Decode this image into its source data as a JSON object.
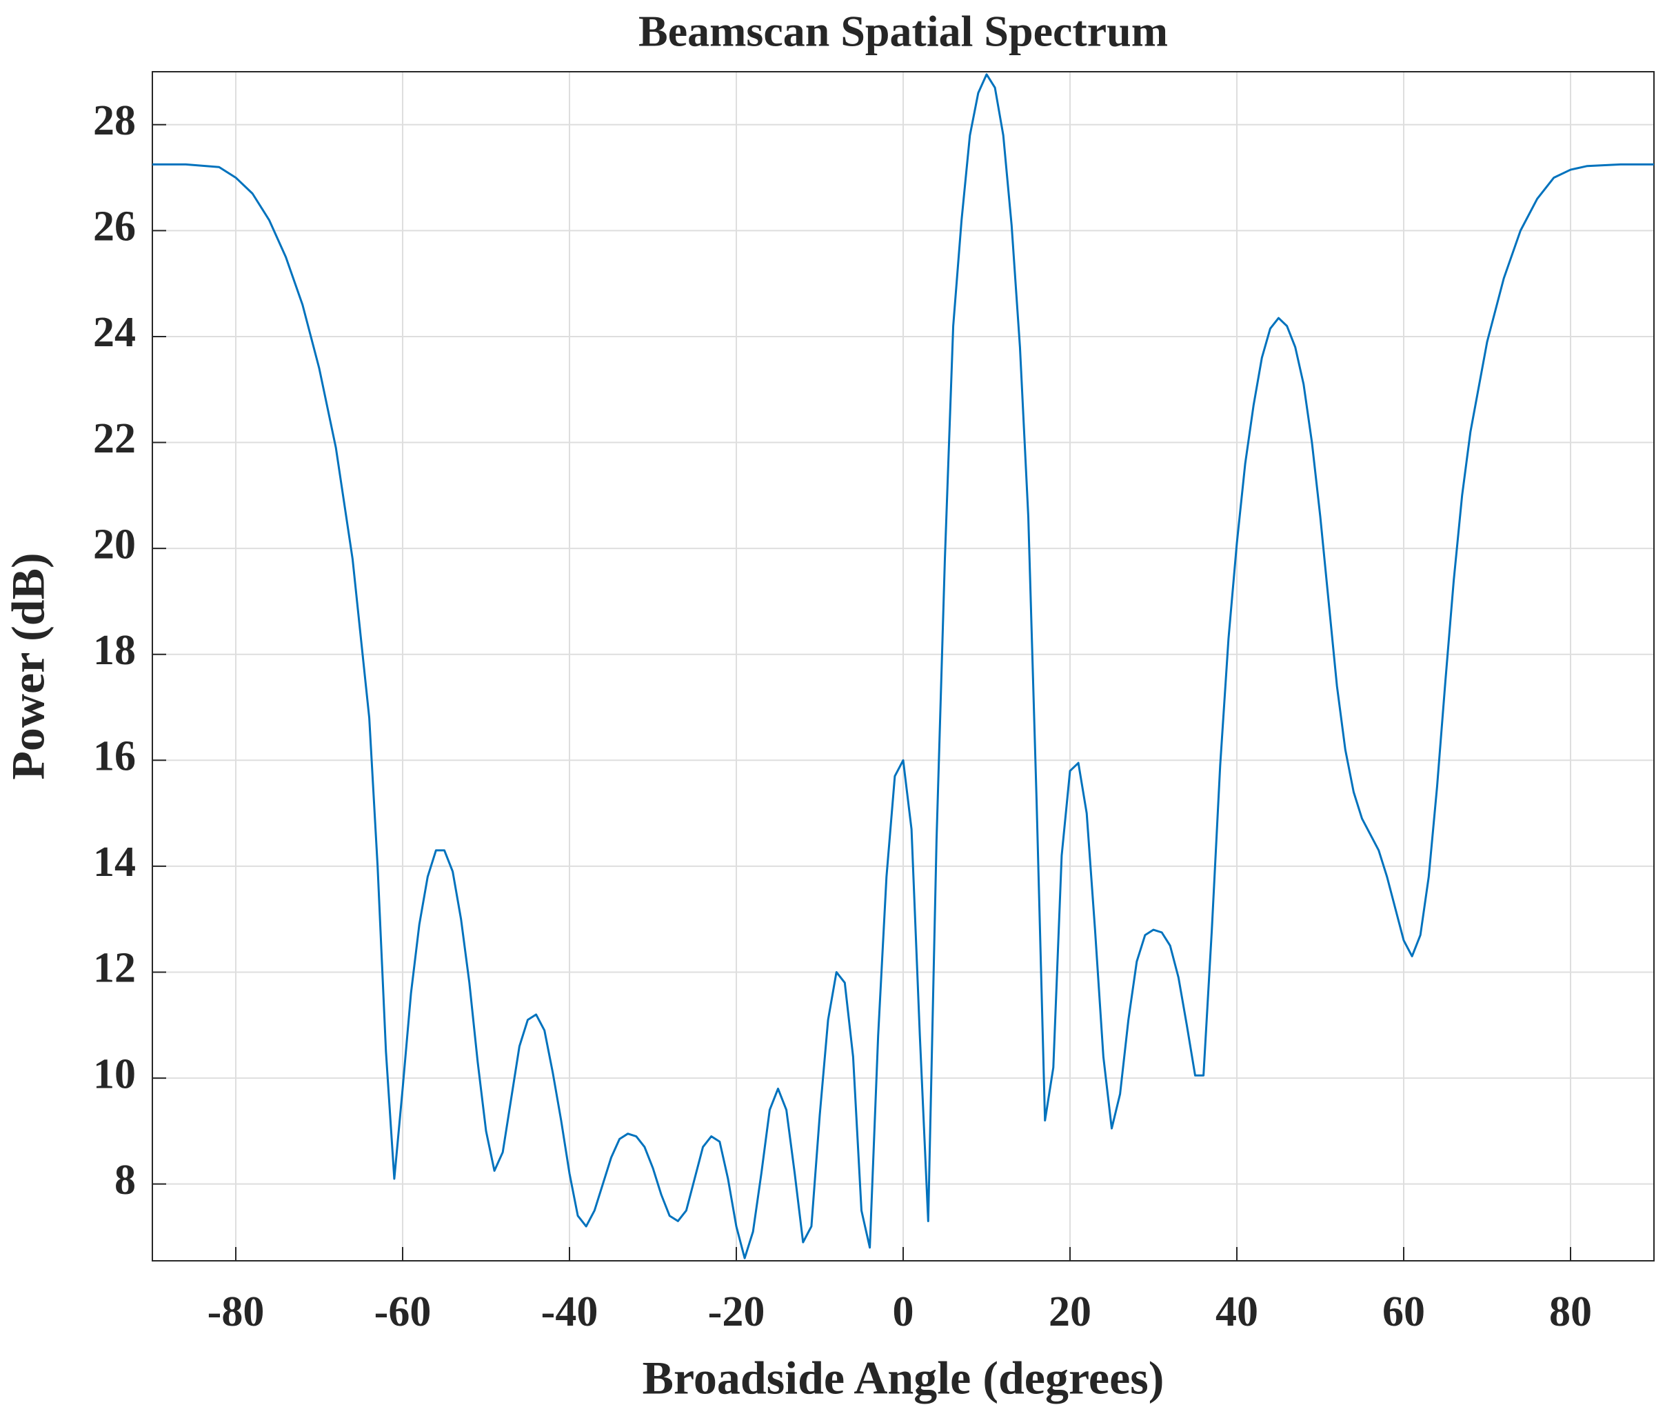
{
  "chart_data": {
    "type": "line",
    "title": "Beamscan Spatial Spectrum",
    "xlabel": "Broadside Angle (degrees)",
    "ylabel": "Power (dB)",
    "xlim": [
      -90,
      90
    ],
    "ylim": [
      6.55,
      29
    ],
    "xticks": [
      -80,
      -60,
      -40,
      -20,
      0,
      20,
      40,
      60,
      80
    ],
    "yticks": [
      8,
      10,
      12,
      14,
      16,
      18,
      20,
      22,
      24,
      26,
      28
    ],
    "grid": true,
    "x": [
      -90,
      -86,
      -82,
      -80,
      -78,
      -76,
      -74,
      -72,
      -70,
      -68,
      -66,
      -65,
      -64,
      -63,
      -62,
      -61,
      -60,
      -59,
      -58,
      -57,
      -56,
      -55,
      -54,
      -53,
      -52,
      -51,
      -50,
      -49,
      -48,
      -47,
      -46,
      -45,
      -44,
      -43,
      -42,
      -41,
      -40,
      -39,
      -38,
      -37,
      -36,
      -35,
      -34,
      -33,
      -32,
      -31,
      -30,
      -29,
      -28,
      -27,
      -26,
      -25,
      -24,
      -23,
      -22,
      -21,
      -20,
      -19,
      -18,
      -17,
      -16,
      -15,
      -14,
      -13,
      -12,
      -11,
      -10,
      -9,
      -8,
      -7,
      -6,
      -5,
      -4,
      -3,
      -2,
      -1,
      0,
      1,
      2,
      3,
      4,
      5,
      6,
      7,
      8,
      9,
      10,
      11,
      12,
      13,
      14,
      15,
      16,
      17,
      18,
      19,
      20,
      21,
      22,
      23,
      24,
      25,
      26,
      27,
      28,
      29,
      30,
      31,
      32,
      33,
      34,
      35,
      36,
      37,
      38,
      39,
      40,
      41,
      42,
      43,
      44,
      45,
      46,
      47,
      48,
      49,
      50,
      51,
      52,
      53,
      54,
      55,
      56,
      57,
      58,
      59,
      60,
      61,
      62,
      63,
      64,
      65,
      66,
      67,
      68,
      70,
      72,
      74,
      76,
      78,
      80,
      82,
      86,
      90
    ],
    "series": [
      {
        "name": "Power",
        "color": "#0072BD",
        "values": [
          27.25,
          27.25,
          27.2,
          27.0,
          26.7,
          26.2,
          25.5,
          24.6,
          23.4,
          21.9,
          19.8,
          18.3,
          16.8,
          14.0,
          10.5,
          8.1,
          9.8,
          11.6,
          12.9,
          13.8,
          14.3,
          14.3,
          13.9,
          13.0,
          11.8,
          10.3,
          9.0,
          8.25,
          8.6,
          9.6,
          10.6,
          11.1,
          11.2,
          10.9,
          10.1,
          9.2,
          8.2,
          7.4,
          7.2,
          7.5,
          8.0,
          8.5,
          8.85,
          8.95,
          8.9,
          8.7,
          8.3,
          7.8,
          7.4,
          7.3,
          7.5,
          8.1,
          8.7,
          8.9,
          8.8,
          8.1,
          7.2,
          6.6,
          7.1,
          8.2,
          9.4,
          9.8,
          9.4,
          8.2,
          6.9,
          7.2,
          9.3,
          11.1,
          12.0,
          11.8,
          10.4,
          7.5,
          6.8,
          10.8,
          13.8,
          15.7,
          16.0,
          14.7,
          10.8,
          7.3,
          14.5,
          19.8,
          24.2,
          26.2,
          27.8,
          28.6,
          28.95,
          28.7,
          27.8,
          26.1,
          23.8,
          20.6,
          15.2,
          9.2,
          10.2,
          14.2,
          15.8,
          15.95,
          15.0,
          12.8,
          10.4,
          9.05,
          9.7,
          11.1,
          12.2,
          12.7,
          12.8,
          12.75,
          12.5,
          11.9,
          11.0,
          10.05,
          10.05,
          12.8,
          15.9,
          18.3,
          20.1,
          21.6,
          22.7,
          23.6,
          24.15,
          24.35,
          24.2,
          23.8,
          23.1,
          22.0,
          20.6,
          19.0,
          17.4,
          16.2,
          15.4,
          14.9,
          14.6,
          14.3,
          13.8,
          13.2,
          12.6,
          12.3,
          12.7,
          13.8,
          15.5,
          17.5,
          19.4,
          21.0,
          22.2,
          23.9,
          25.1,
          26.0,
          26.6,
          27.0,
          27.15,
          27.22,
          27.25,
          27.25
        ]
      }
    ]
  }
}
